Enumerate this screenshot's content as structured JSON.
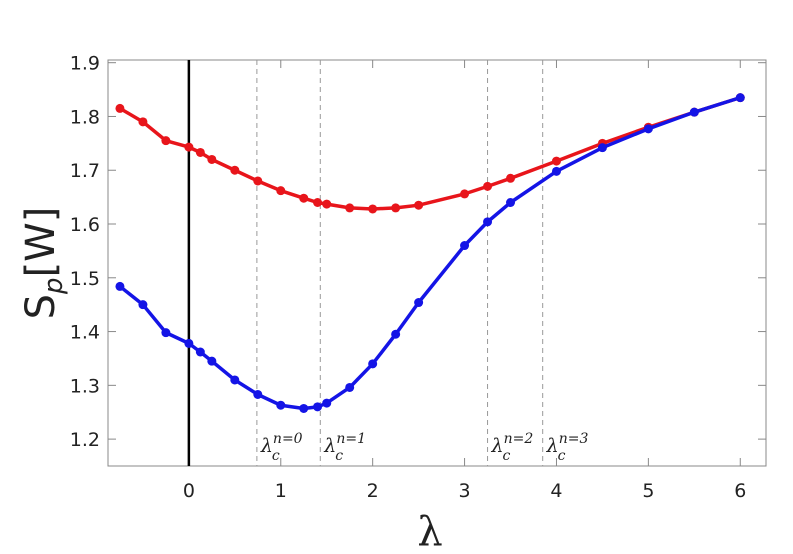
{
  "chart_data": {
    "type": "line",
    "y_label": {
      "main": "S",
      "sub": "p",
      "suffix": "[W]"
    },
    "x_label": "λ",
    "series": [
      {
        "name": "red",
        "color": "#e8151b",
        "x": [
          -0.75,
          -0.5,
          -0.25,
          0,
          0.125,
          0.25,
          0.5,
          0.75,
          1,
          1.25,
          1.4,
          1.5,
          1.75,
          2,
          2.25,
          2.5,
          3,
          3.25,
          3.5,
          4,
          4.5,
          5,
          5.5,
          6
        ],
        "values": [
          1.815,
          1.79,
          1.755,
          1.743,
          1.733,
          1.72,
          1.7,
          1.68,
          1.662,
          1.648,
          1.64,
          1.637,
          1.63,
          1.628,
          1.63,
          1.635,
          1.656,
          1.67,
          1.685,
          1.717,
          1.75,
          1.78,
          1.808,
          1.835
        ]
      },
      {
        "name": "blue",
        "color": "#1414e6",
        "x": [
          -0.75,
          -0.5,
          -0.25,
          0,
          0.125,
          0.25,
          0.5,
          0.75,
          1,
          1.25,
          1.4,
          1.5,
          1.75,
          2,
          2.25,
          2.5,
          3,
          3.25,
          3.5,
          4,
          4.5,
          5,
          5.5,
          6
        ],
        "values": [
          1.484,
          1.45,
          1.398,
          1.378,
          1.362,
          1.345,
          1.31,
          1.283,
          1.263,
          1.257,
          1.26,
          1.267,
          1.296,
          1.34,
          1.395,
          1.454,
          1.56,
          1.604,
          1.64,
          1.698,
          1.742,
          1.777,
          1.808,
          1.835
        ]
      }
    ],
    "annotations": [
      {
        "x": 0.74,
        "main": "λ",
        "sub": "c",
        "sup": "n=0"
      },
      {
        "x": 1.43,
        "main": "λ",
        "sub": "c",
        "sup": "n=1"
      },
      {
        "x": 3.25,
        "main": "λ",
        "sub": "c",
        "sup": "n=2"
      },
      {
        "x": 3.85,
        "main": "λ",
        "sub": "c",
        "sup": "n=3"
      }
    ],
    "xlim": [
      -0.88,
      6.28
    ],
    "ylim": [
      1.15,
      1.905
    ],
    "xticks": [
      0,
      1,
      2,
      3,
      4,
      5,
      6
    ],
    "yticks": [
      1.2,
      1.3,
      1.4,
      1.5,
      1.6,
      1.7,
      1.8,
      1.9
    ],
    "zero_line": true,
    "grid": false
  }
}
